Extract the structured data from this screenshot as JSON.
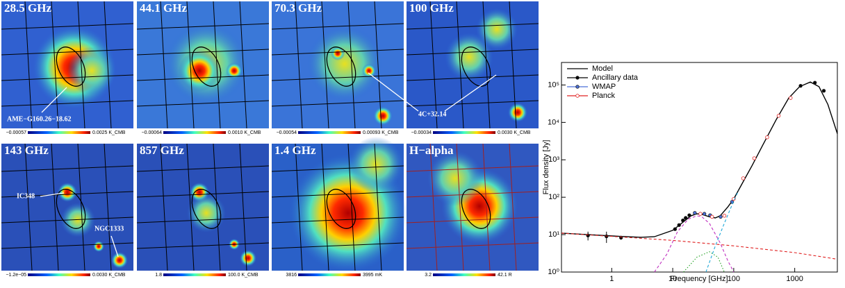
{
  "chart_data": {
    "type": "sed",
    "panels": [
      {
        "title": "28.5 GHz",
        "colorbar": [
          "−0.00057",
          "0.0025 K_CMB"
        ]
      },
      {
        "title": "44.1 GHz",
        "colorbar": [
          "−0.00064",
          "0.0010 K_CMB"
        ]
      },
      {
        "title": "70.3 GHz",
        "colorbar": [
          "−0.00054",
          "0.00093 K_CMB"
        ]
      },
      {
        "title": "100 GHz",
        "colorbar": [
          "−0.00034",
          "0.0030 K_CMB"
        ]
      },
      {
        "title": "143 GHz",
        "colorbar": [
          "−1.2e−05",
          "0.0030 K_CMB"
        ]
      },
      {
        "title": "857 GHz",
        "colorbar": [
          "1.8",
          "100.0 K_CMB"
        ]
      },
      {
        "title": "1.4 GHz",
        "colorbar": [
          "3816",
          "3995 mK"
        ]
      },
      {
        "title": "H−alpha",
        "colorbar": [
          "3.2",
          "42.1 R"
        ]
      }
    ],
    "annotations": [
      "AME−G160.26−18.62",
      "4C+32.14",
      "IC348",
      "NGC1333"
    ],
    "xlabel": "Frequency [GHz]",
    "ylabel": "Flux density [Jy]",
    "log_x": true,
    "log_y": true,
    "xlim": [
      0.15,
      5000
    ],
    "ylim": [
      1,
      400000
    ],
    "xticks": [
      1,
      10,
      100,
      1000
    ],
    "yticks": [
      {
        "value": 1,
        "label": "10⁰"
      },
      {
        "value": 10,
        "label": "10¹"
      },
      {
        "value": 100,
        "label": "10²"
      },
      {
        "value": 1000,
        "label": "10³"
      },
      {
        "value": 10000,
        "label": "10⁴"
      },
      {
        "value": 100000,
        "label": "10⁵"
      }
    ],
    "legend": "top-left",
    "series": [
      {
        "name": "Model",
        "color": "#000000",
        "style": "solid",
        "x": [
          0.15,
          0.4,
          1,
          3,
          5,
          10,
          15,
          20,
          25,
          30,
          40,
          50,
          60,
          80,
          100,
          150,
          200,
          300,
          500,
          800,
          1200,
          1800,
          2500,
          3500,
          5000
        ],
        "values": [
          11,
          10,
          9.2,
          8.5,
          8.8,
          13,
          22,
          32,
          36,
          35,
          30,
          28,
          32,
          55,
          90,
          300,
          700,
          2500,
          12000,
          45000,
          90000,
          120000,
          90000,
          30000,
          5000
        ]
      },
      {
        "name": "Ancillary data",
        "color": "#000000",
        "style": "points",
        "marker": "filled",
        "x": [
          0.408,
          0.82,
          1.42,
          10.9,
          12.7,
          14.7,
          16.3,
          18.7,
          1249,
          2141,
          2998
        ],
        "values": [
          9.5,
          9,
          8.3,
          14,
          18,
          24,
          28,
          33,
          95000,
          115000,
          70000
        ],
        "errors": [
          2.5,
          3,
          1,
          null,
          null,
          null,
          null,
          null,
          null,
          null,
          null
        ]
      },
      {
        "name": "WMAP",
        "color": "#4a6fd8",
        "style": "points",
        "marker": "filled",
        "x": [
          23,
          33,
          41,
          61,
          94
        ],
        "values": [
          38,
          36,
          33,
          30,
          75
        ]
      },
      {
        "name": "Planck",
        "color": "#e02020",
        "style": "points",
        "marker": "open",
        "x": [
          28.4,
          44.1,
          70.4,
          100,
          143,
          217,
          353,
          545,
          857
        ],
        "values": [
          36,
          30,
          32,
          90,
          320,
          1100,
          4000,
          15000,
          45000
        ]
      },
      {
        "color": "#e02020",
        "style": "dashed",
        "x": [
          0.15,
          1,
          10,
          100,
          1000,
          5000
        ],
        "values": [
          11,
          9,
          7,
          5,
          3.3,
          2.2
        ]
      },
      {
        "color": "#c030c0",
        "style": "dashed",
        "x": [
          5,
          8,
          12,
          18,
          25,
          30,
          40,
          60,
          80,
          100
        ],
        "values": [
          1,
          3,
          12,
          26,
          32,
          30,
          20,
          6,
          2,
          1
        ]
      },
      {
        "color": "#20a020",
        "style": "dotted",
        "x": [
          15,
          25,
          40,
          55,
          70
        ],
        "values": [
          1,
          2.5,
          3.5,
          2.5,
          1
        ]
      },
      {
        "color": "#20a8d8",
        "style": "dashed",
        "x": [
          35,
          50,
          70,
          100,
          120
        ],
        "values": [
          1,
          5,
          20,
          80,
          150
        ]
      }
    ]
  }
}
